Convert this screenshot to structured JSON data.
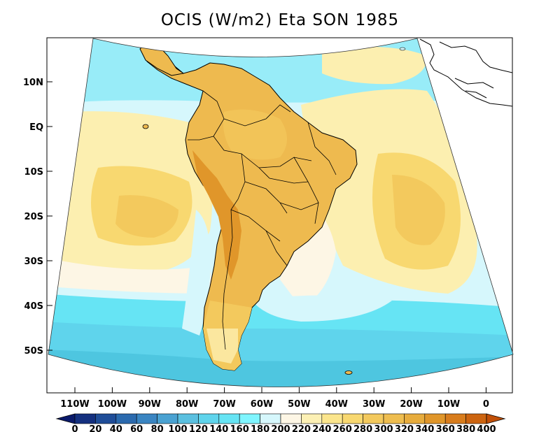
{
  "title": "OCIS (W/m2) Eta SON 1985",
  "lat_labels": [
    "10N",
    "EQ",
    "10S",
    "20S",
    "30S",
    "40S",
    "50S"
  ],
  "lon_labels": [
    "110W",
    "100W",
    "90W",
    "80W",
    "70W",
    "60W",
    "50W",
    "40W",
    "30W",
    "20W",
    "10W",
    "0"
  ],
  "colorbar": {
    "levels": [
      "0",
      "20",
      "40",
      "60",
      "80",
      "100",
      "120",
      "140",
      "160",
      "180",
      "200",
      "220",
      "240",
      "260",
      "280",
      "300",
      "320",
      "340",
      "360",
      "380",
      "400"
    ],
    "colors": [
      "#0a1a6b",
      "#14307f",
      "#1f4d98",
      "#2b6aae",
      "#3a85c2",
      "#4aa2d2",
      "#5bc0e0",
      "#5fd4ec",
      "#66e4f4",
      "#7ff5ff",
      "#d6f7fc",
      "#fdf6e5",
      "#fcf0b4",
      "#fbe58c",
      "#f8d870",
      "#f3c95d",
      "#eebd4f",
      "#e7ac3d",
      "#e0962a",
      "#d87c1c",
      "#cc6410",
      "#c14f08"
    ]
  },
  "legend_ticks_visible": true,
  "region_colors": {
    "ocean_south_deep": "#4ec6e0",
    "ocean_south": "#66e4f4",
    "ocean_light": "#d6f7fc",
    "ocean_cream": "#fdf6e5",
    "ocean_pale_yellow": "#fcefb0",
    "land_main": "#eeba4f",
    "land_dark": "#e0962a",
    "land_patagonia": "#f3c95d"
  }
}
